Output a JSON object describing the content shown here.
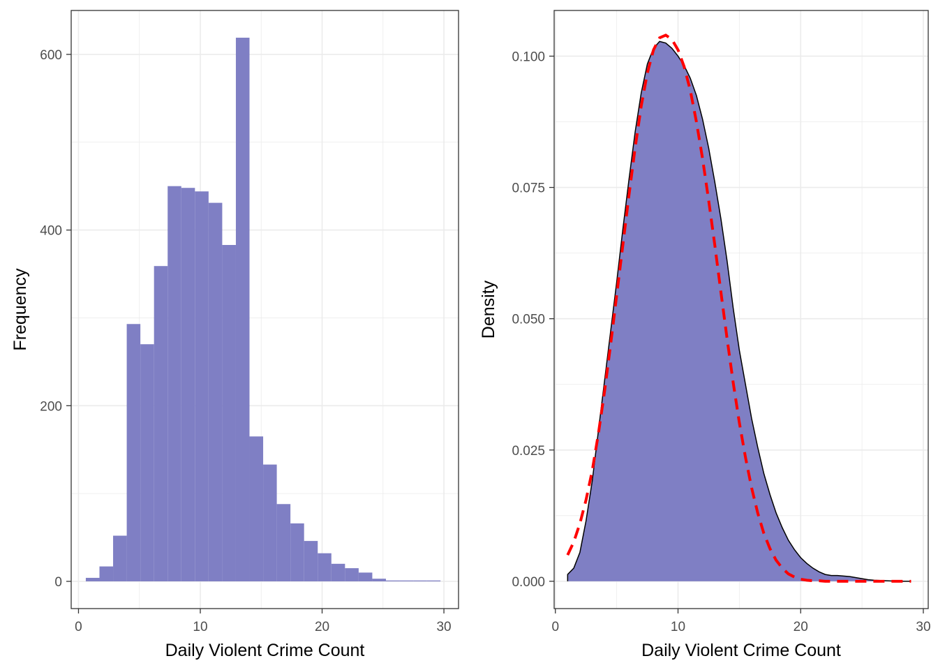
{
  "chart_data": [
    {
      "type": "bar",
      "subtype": "histogram",
      "xlabel": "Daily Violent Crime Count",
      "ylabel": "Frequency",
      "xlim": [
        -0.6,
        31.2
      ],
      "ylim": [
        -31,
        650
      ],
      "x_ticks": [
        0,
        10,
        20,
        30
      ],
      "y_ticks": [
        0,
        200,
        400,
        600
      ],
      "x_tick_labels": [
        "0",
        "10",
        "20",
        "30"
      ],
      "y_tick_labels": [
        "0",
        "200",
        "400",
        "600"
      ],
      "grid": true,
      "bin_width": 1.12,
      "bin_edges_start": 0.6,
      "values": [
        4,
        17,
        52,
        293,
        270,
        359,
        450,
        448,
        444,
        431,
        383,
        619,
        165,
        133,
        88,
        66,
        46,
        32,
        20,
        15,
        10,
        3,
        1,
        1,
        1,
        1
      ],
      "colors": {
        "fill": "#7f7fc4",
        "grid": "#ebebeb",
        "border": "#333333"
      }
    },
    {
      "type": "area",
      "subtype": "density",
      "xlabel": "Daily Violent Crime Count",
      "ylabel": "Density",
      "xlim": [
        -0.1,
        30.4
      ],
      "ylim": [
        -0.0052,
        0.1087
      ],
      "x_ticks": [
        0,
        10,
        20,
        30
      ],
      "y_ticks": [
        0,
        0.025,
        0.05,
        0.075,
        0.1
      ],
      "x_tick_labels": [
        "0",
        "10",
        "20",
        "30"
      ],
      "y_tick_labels": [
        "0.000",
        "0.025",
        "0.050",
        "0.075",
        "0.100"
      ],
      "grid": true,
      "series": [
        {
          "kind": "density-area",
          "x": [
            1,
            1.5,
            2,
            2.5,
            3,
            3.5,
            4,
            4.5,
            5,
            5.5,
            6,
            6.5,
            7,
            7.5,
            8,
            8.5,
            9,
            9.5,
            10,
            10.5,
            11,
            11.5,
            12,
            12.5,
            13,
            13.5,
            14,
            14.5,
            15,
            15.5,
            16,
            16.5,
            17,
            17.5,
            18,
            18.5,
            19,
            19.5,
            20,
            20.5,
            21,
            21.5,
            22,
            22.5,
            23,
            23.5,
            24,
            24.5,
            25,
            25.5,
            26,
            27,
            28,
            29
          ],
          "y": [
            0.0013,
            0.0025,
            0.0055,
            0.0115,
            0.019,
            0.0285,
            0.038,
            0.0475,
            0.057,
            0.067,
            0.0765,
            0.0855,
            0.093,
            0.0985,
            0.1015,
            0.1028,
            0.1025,
            0.1015,
            0.1,
            0.0982,
            0.0958,
            0.0925,
            0.088,
            0.0825,
            0.076,
            0.069,
            0.061,
            0.052,
            0.044,
            0.0375,
            0.031,
            0.0255,
            0.0205,
            0.0165,
            0.013,
            0.0102,
            0.0078,
            0.006,
            0.0045,
            0.0034,
            0.0025,
            0.0018,
            0.0013,
            0.0011,
            0.0011,
            0.001,
            0.0009,
            0.0007,
            0.0005,
            0.0003,
            0.0002,
            0.0001,
            0.0,
            0.0
          ],
          "fill": "#7f7fc4",
          "stroke": "#000000"
        },
        {
          "kind": "reference-curve",
          "x": [
            1,
            1.5,
            2,
            2.5,
            3,
            3.5,
            4,
            4.5,
            5,
            5.5,
            6,
            6.5,
            7,
            7.5,
            8,
            8.5,
            9,
            9.5,
            10,
            10.5,
            11,
            11.5,
            12,
            12.5,
            13,
            13.5,
            14,
            14.5,
            15,
            15.5,
            16,
            16.5,
            17,
            17.5,
            18,
            18.5,
            19,
            19.5,
            20,
            20.5,
            21,
            21.5,
            22,
            23,
            24,
            25,
            26,
            27,
            28,
            29
          ],
          "y": [
            0.005,
            0.0075,
            0.011,
            0.0155,
            0.021,
            0.028,
            0.036,
            0.045,
            0.0545,
            0.064,
            0.0735,
            0.0825,
            0.0905,
            0.0968,
            0.1012,
            0.1035,
            0.104,
            0.1032,
            0.1012,
            0.098,
            0.0935,
            0.0875,
            0.0805,
            0.0725,
            0.064,
            0.055,
            0.0462,
            0.0378,
            0.0302,
            0.0236,
            0.0178,
            0.013,
            0.0091,
            0.0062,
            0.004,
            0.0025,
            0.0014,
            0.0008,
            0.0004,
            0.0002,
            0.0001,
            0.0001,
            0.0,
            0.0,
            0.0,
            0.0,
            0.0,
            0.0,
            0.0,
            0.0
          ],
          "stroke": "#ff0000",
          "dash": "dashed"
        }
      ],
      "colors": {
        "fill": "#7f7fc4",
        "outline": "#000000",
        "reference": "#ff0000",
        "grid": "#ebebeb",
        "border": "#333333"
      }
    }
  ]
}
